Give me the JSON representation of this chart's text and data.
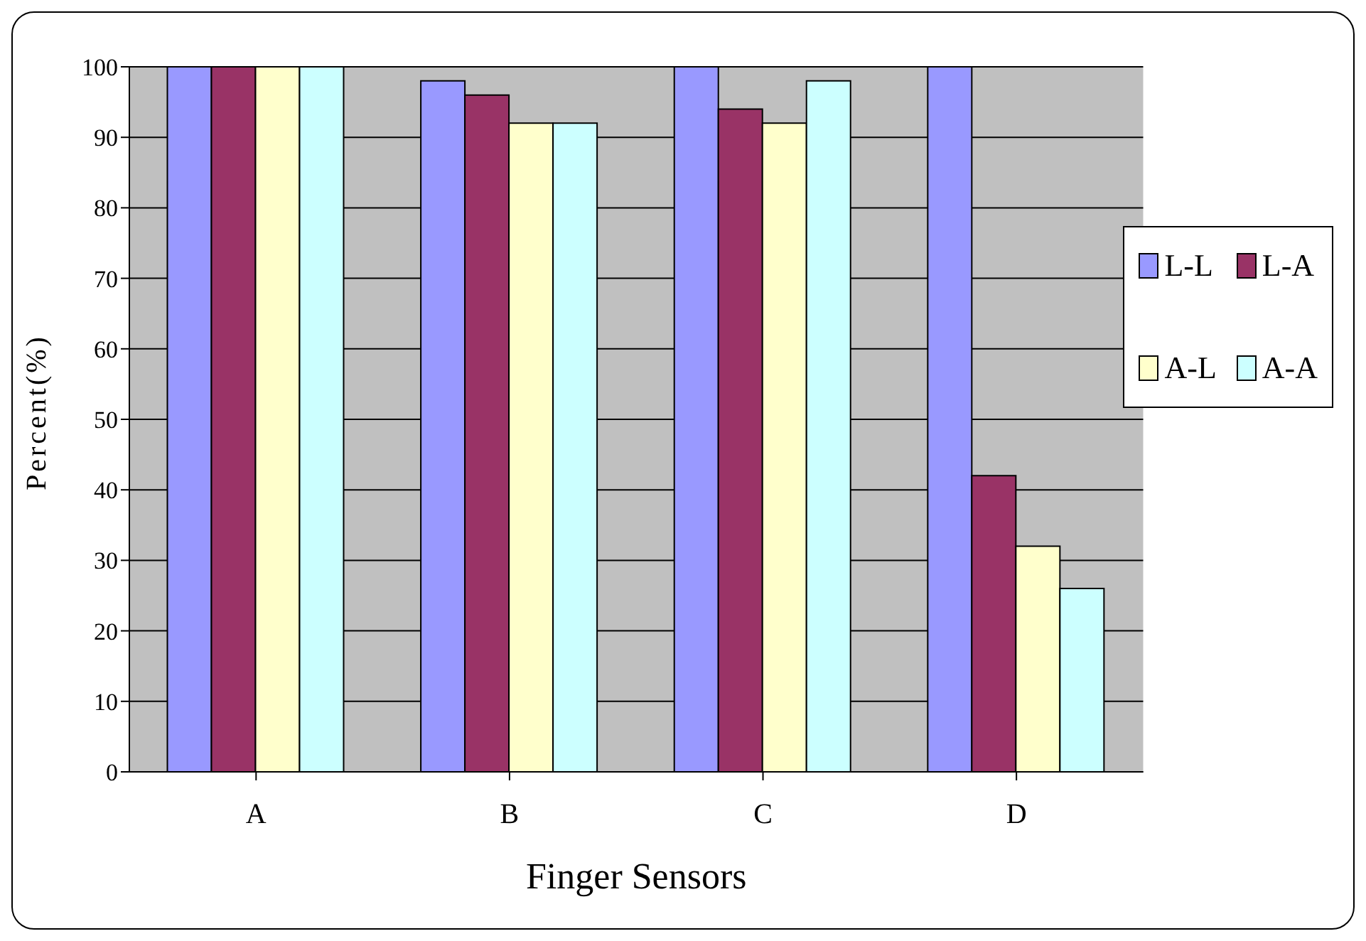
{
  "chart_data": {
    "type": "bar",
    "xlabel": "Finger Sensors",
    "ylabel": "Percent(%)",
    "categories": [
      "A",
      "B",
      "C",
      "D"
    ],
    "series": [
      {
        "name": "L-L",
        "color": "#9999ff",
        "values": [
          100,
          98,
          100,
          100
        ]
      },
      {
        "name": "L-A",
        "color": "#993366",
        "values": [
          100,
          96,
          94,
          42
        ]
      },
      {
        "name": "A-L",
        "color": "#ffffcc",
        "values": [
          100,
          92,
          92,
          32
        ]
      },
      {
        "name": "A-A",
        "color": "#ccffff",
        "values": [
          100,
          92,
          98,
          26
        ]
      }
    ],
    "ylim": [
      0,
      100
    ],
    "yticks": [
      0,
      10,
      20,
      30,
      40,
      50,
      60,
      70,
      80,
      90,
      100
    ],
    "grid": "y",
    "legend": "right"
  }
}
